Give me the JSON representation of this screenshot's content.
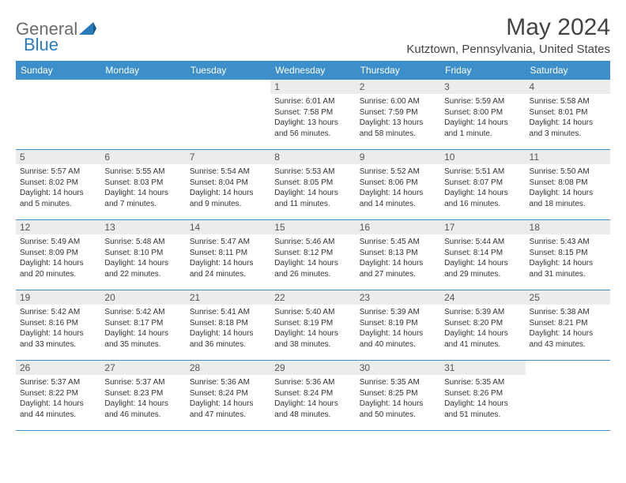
{
  "brand": {
    "word1": "General",
    "word2": "Blue"
  },
  "title": "May 2024",
  "location": "Kutztown, Pennsylvania, United States",
  "colors": {
    "header_bg": "#3d8fc9",
    "header_text": "#ffffff",
    "daynum_bg": "#ececec",
    "rule": "#3d8fc9",
    "body_text": "#333333",
    "logo_gray": "#6b6b6b",
    "logo_blue": "#2a7ab9"
  },
  "day_labels": [
    "Sunday",
    "Monday",
    "Tuesday",
    "Wednesday",
    "Thursday",
    "Friday",
    "Saturday"
  ],
  "weeks": [
    [
      null,
      null,
      null,
      {
        "n": "1",
        "sr": "Sunrise: 6:01 AM",
        "ss": "Sunset: 7:58 PM",
        "d1": "Daylight: 13 hours",
        "d2": "and 56 minutes."
      },
      {
        "n": "2",
        "sr": "Sunrise: 6:00 AM",
        "ss": "Sunset: 7:59 PM",
        "d1": "Daylight: 13 hours",
        "d2": "and 58 minutes."
      },
      {
        "n": "3",
        "sr": "Sunrise: 5:59 AM",
        "ss": "Sunset: 8:00 PM",
        "d1": "Daylight: 14 hours",
        "d2": "and 1 minute."
      },
      {
        "n": "4",
        "sr": "Sunrise: 5:58 AM",
        "ss": "Sunset: 8:01 PM",
        "d1": "Daylight: 14 hours",
        "d2": "and 3 minutes."
      }
    ],
    [
      {
        "n": "5",
        "sr": "Sunrise: 5:57 AM",
        "ss": "Sunset: 8:02 PM",
        "d1": "Daylight: 14 hours",
        "d2": "and 5 minutes."
      },
      {
        "n": "6",
        "sr": "Sunrise: 5:55 AM",
        "ss": "Sunset: 8:03 PM",
        "d1": "Daylight: 14 hours",
        "d2": "and 7 minutes."
      },
      {
        "n": "7",
        "sr": "Sunrise: 5:54 AM",
        "ss": "Sunset: 8:04 PM",
        "d1": "Daylight: 14 hours",
        "d2": "and 9 minutes."
      },
      {
        "n": "8",
        "sr": "Sunrise: 5:53 AM",
        "ss": "Sunset: 8:05 PM",
        "d1": "Daylight: 14 hours",
        "d2": "and 11 minutes."
      },
      {
        "n": "9",
        "sr": "Sunrise: 5:52 AM",
        "ss": "Sunset: 8:06 PM",
        "d1": "Daylight: 14 hours",
        "d2": "and 14 minutes."
      },
      {
        "n": "10",
        "sr": "Sunrise: 5:51 AM",
        "ss": "Sunset: 8:07 PM",
        "d1": "Daylight: 14 hours",
        "d2": "and 16 minutes."
      },
      {
        "n": "11",
        "sr": "Sunrise: 5:50 AM",
        "ss": "Sunset: 8:08 PM",
        "d1": "Daylight: 14 hours",
        "d2": "and 18 minutes."
      }
    ],
    [
      {
        "n": "12",
        "sr": "Sunrise: 5:49 AM",
        "ss": "Sunset: 8:09 PM",
        "d1": "Daylight: 14 hours",
        "d2": "and 20 minutes."
      },
      {
        "n": "13",
        "sr": "Sunrise: 5:48 AM",
        "ss": "Sunset: 8:10 PM",
        "d1": "Daylight: 14 hours",
        "d2": "and 22 minutes."
      },
      {
        "n": "14",
        "sr": "Sunrise: 5:47 AM",
        "ss": "Sunset: 8:11 PM",
        "d1": "Daylight: 14 hours",
        "d2": "and 24 minutes."
      },
      {
        "n": "15",
        "sr": "Sunrise: 5:46 AM",
        "ss": "Sunset: 8:12 PM",
        "d1": "Daylight: 14 hours",
        "d2": "and 26 minutes."
      },
      {
        "n": "16",
        "sr": "Sunrise: 5:45 AM",
        "ss": "Sunset: 8:13 PM",
        "d1": "Daylight: 14 hours",
        "d2": "and 27 minutes."
      },
      {
        "n": "17",
        "sr": "Sunrise: 5:44 AM",
        "ss": "Sunset: 8:14 PM",
        "d1": "Daylight: 14 hours",
        "d2": "and 29 minutes."
      },
      {
        "n": "18",
        "sr": "Sunrise: 5:43 AM",
        "ss": "Sunset: 8:15 PM",
        "d1": "Daylight: 14 hours",
        "d2": "and 31 minutes."
      }
    ],
    [
      {
        "n": "19",
        "sr": "Sunrise: 5:42 AM",
        "ss": "Sunset: 8:16 PM",
        "d1": "Daylight: 14 hours",
        "d2": "and 33 minutes."
      },
      {
        "n": "20",
        "sr": "Sunrise: 5:42 AM",
        "ss": "Sunset: 8:17 PM",
        "d1": "Daylight: 14 hours",
        "d2": "and 35 minutes."
      },
      {
        "n": "21",
        "sr": "Sunrise: 5:41 AM",
        "ss": "Sunset: 8:18 PM",
        "d1": "Daylight: 14 hours",
        "d2": "and 36 minutes."
      },
      {
        "n": "22",
        "sr": "Sunrise: 5:40 AM",
        "ss": "Sunset: 8:19 PM",
        "d1": "Daylight: 14 hours",
        "d2": "and 38 minutes."
      },
      {
        "n": "23",
        "sr": "Sunrise: 5:39 AM",
        "ss": "Sunset: 8:19 PM",
        "d1": "Daylight: 14 hours",
        "d2": "and 40 minutes."
      },
      {
        "n": "24",
        "sr": "Sunrise: 5:39 AM",
        "ss": "Sunset: 8:20 PM",
        "d1": "Daylight: 14 hours",
        "d2": "and 41 minutes."
      },
      {
        "n": "25",
        "sr": "Sunrise: 5:38 AM",
        "ss": "Sunset: 8:21 PM",
        "d1": "Daylight: 14 hours",
        "d2": "and 43 minutes."
      }
    ],
    [
      {
        "n": "26",
        "sr": "Sunrise: 5:37 AM",
        "ss": "Sunset: 8:22 PM",
        "d1": "Daylight: 14 hours",
        "d2": "and 44 minutes."
      },
      {
        "n": "27",
        "sr": "Sunrise: 5:37 AM",
        "ss": "Sunset: 8:23 PM",
        "d1": "Daylight: 14 hours",
        "d2": "and 46 minutes."
      },
      {
        "n": "28",
        "sr": "Sunrise: 5:36 AM",
        "ss": "Sunset: 8:24 PM",
        "d1": "Daylight: 14 hours",
        "d2": "and 47 minutes."
      },
      {
        "n": "29",
        "sr": "Sunrise: 5:36 AM",
        "ss": "Sunset: 8:24 PM",
        "d1": "Daylight: 14 hours",
        "d2": "and 48 minutes."
      },
      {
        "n": "30",
        "sr": "Sunrise: 5:35 AM",
        "ss": "Sunset: 8:25 PM",
        "d1": "Daylight: 14 hours",
        "d2": "and 50 minutes."
      },
      {
        "n": "31",
        "sr": "Sunrise: 5:35 AM",
        "ss": "Sunset: 8:26 PM",
        "d1": "Daylight: 14 hours",
        "d2": "and 51 minutes."
      },
      null
    ]
  ]
}
